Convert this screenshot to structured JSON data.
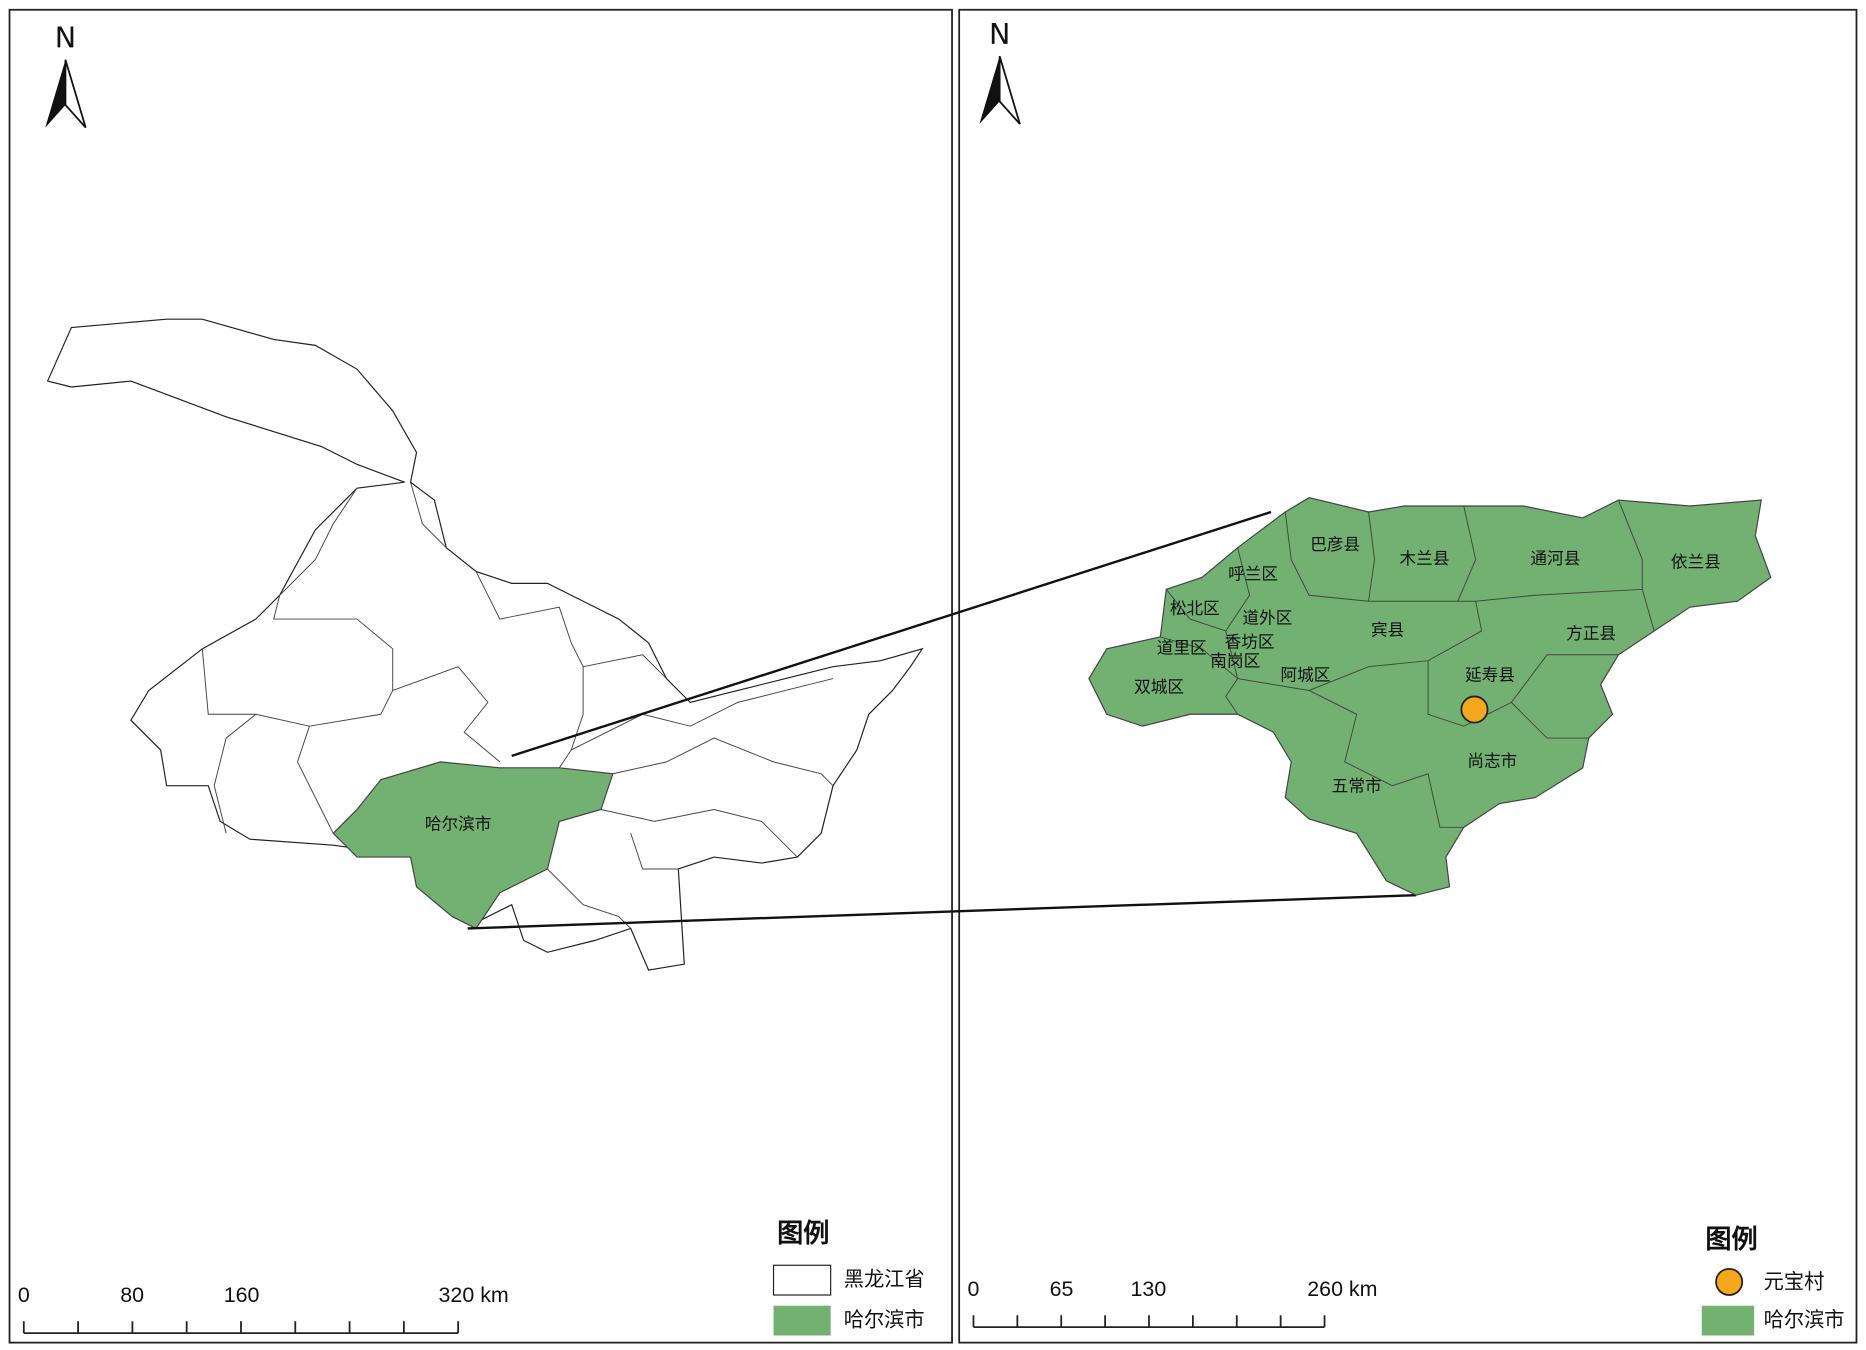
{
  "left_map": {
    "north": "N",
    "region_label": "哈尔滨市",
    "legend": {
      "title": "图例",
      "items": [
        "黑龙江省",
        "哈尔滨市"
      ]
    },
    "scale_bar": [
      "0",
      "80",
      "160",
      "320 km"
    ]
  },
  "right_map": {
    "north": "N",
    "district_labels": [
      "巴彦县",
      "木兰县",
      "通河县",
      "依兰县",
      "呼兰区",
      "松北区",
      "道外区",
      "宾县",
      "方正县",
      "道里区",
      "香坊区",
      "南岗区",
      "阿城区",
      "延寿县",
      "双城区",
      "尚志市",
      "五常市"
    ],
    "legend": {
      "title": "图例",
      "items": [
        "元宝村",
        "哈尔滨市"
      ]
    },
    "scale_bar": [
      "0",
      "65",
      "130",
      "260 km"
    ]
  }
}
